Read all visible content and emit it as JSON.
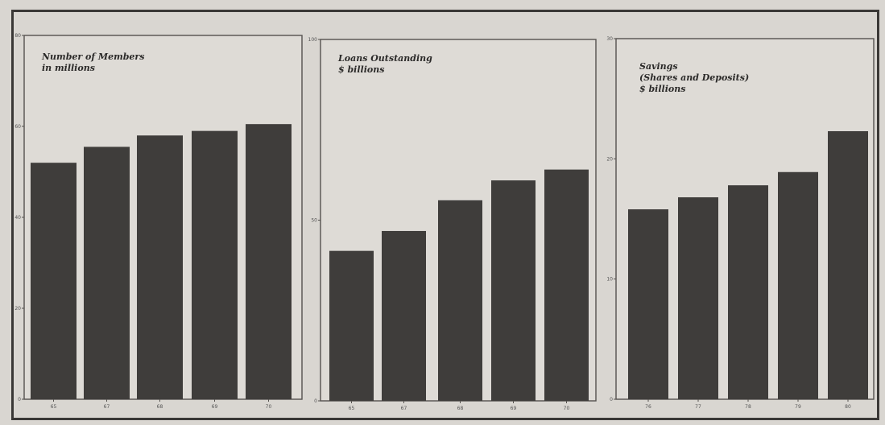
{
  "chart_data": [
    {
      "type": "bar",
      "title_lines": [
        "Number of Members",
        "in millions"
      ],
      "categories": [
        "65",
        "67",
        "68",
        "69",
        "70"
      ],
      "values": [
        52,
        55.5,
        58,
        59,
        60.5
      ],
      "ylim": [
        0,
        80
      ],
      "yticks": [
        "0",
        "20",
        "40",
        "60",
        "80"
      ]
    },
    {
      "type": "bar",
      "title_lines": [
        "Loans Outstanding",
        "$ billions"
      ],
      "categories": [
        "65",
        "67",
        "68",
        "69",
        "70"
      ],
      "values": [
        41.5,
        47,
        55.5,
        61,
        64
      ],
      "ylim": [
        0,
        100
      ],
      "yticks": [
        "0",
        "50",
        "100"
      ]
    },
    {
      "type": "bar",
      "title_lines": [
        "Savings",
        "(Shares and Deposits)",
        "$ billions"
      ],
      "categories": [
        "76",
        "77",
        "78",
        "79",
        "80"
      ],
      "values": [
        15.8,
        16.8,
        17.8,
        18.9,
        22.3
      ],
      "ylim": [
        0,
        30
      ],
      "yticks": [
        "0",
        "10",
        "20",
        "30"
      ]
    }
  ]
}
